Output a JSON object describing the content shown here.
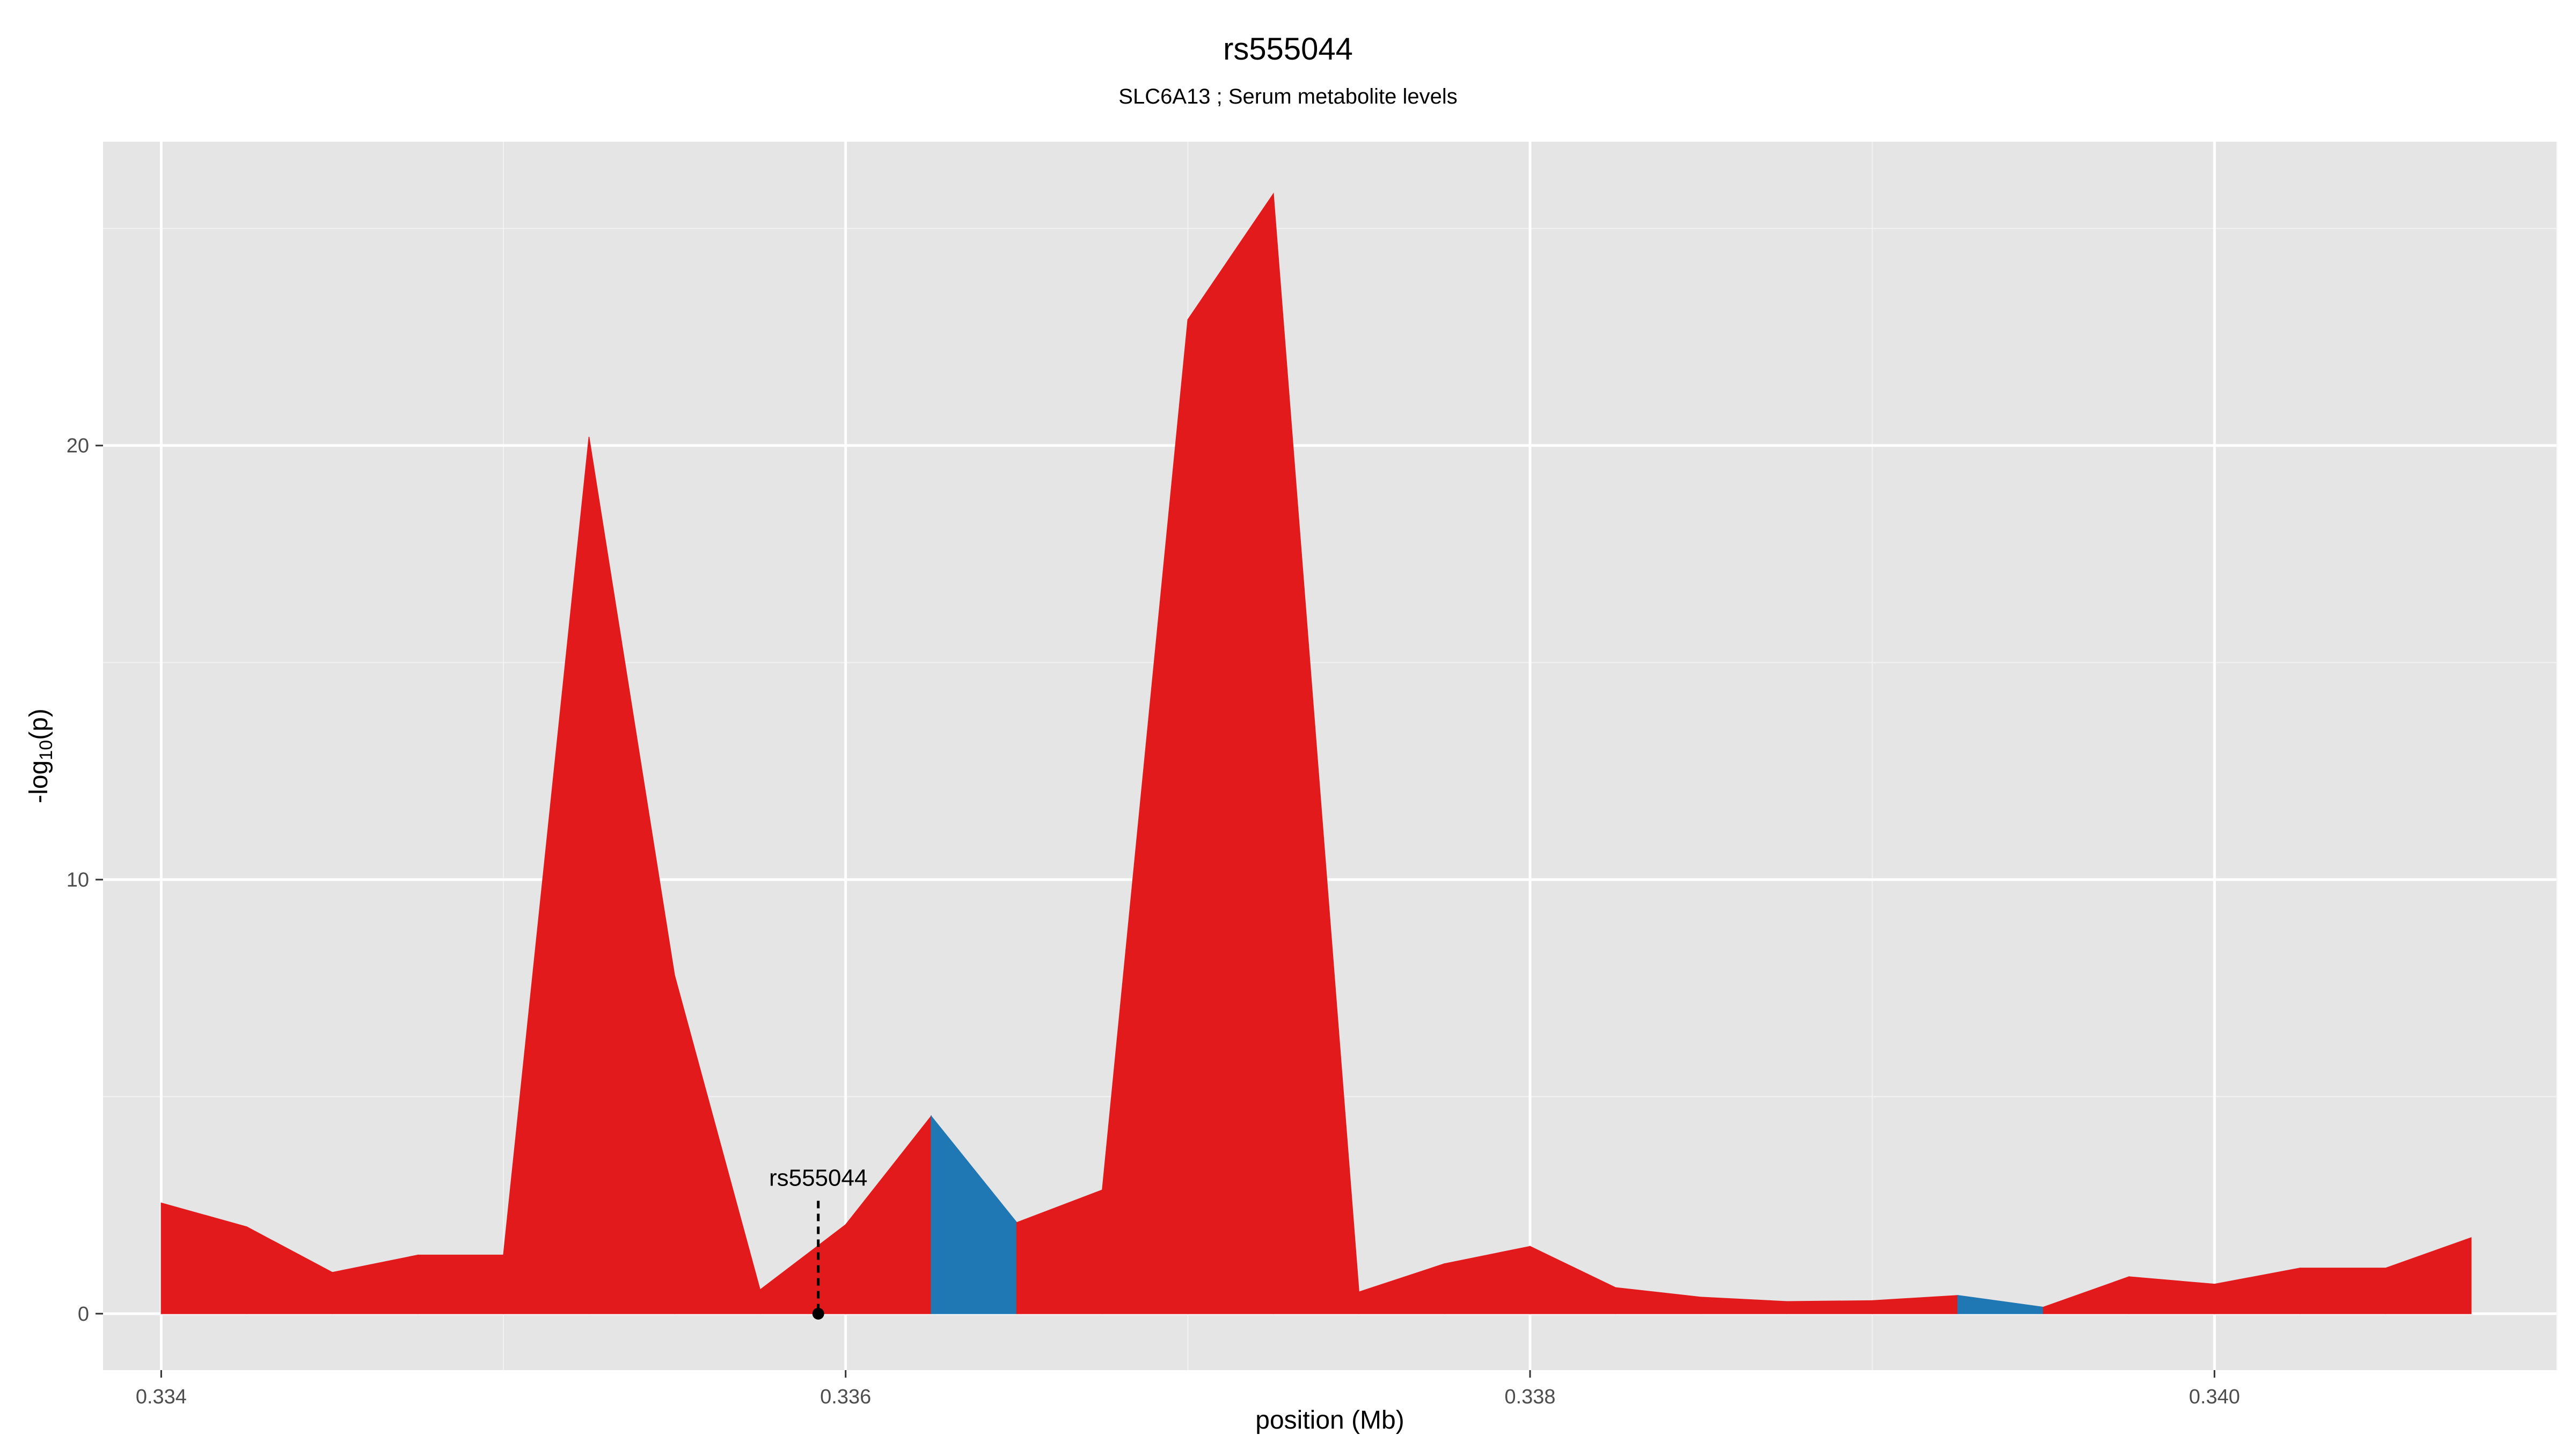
{
  "chart_data": {
    "type": "area",
    "title": "rs555044",
    "subtitle": "SLC6A13 ; Serum metabolite levels",
    "xlabel": "position (Mb)",
    "ylabel": "-log10(p)",
    "xlim": [
      0.33383,
      0.341
    ],
    "ylim": [
      -1.3,
      27.0
    ],
    "x_ticks": [
      0.334,
      0.336,
      0.338,
      0.34
    ],
    "x_tick_labels": [
      "0.334",
      "0.336",
      "0.338",
      "0.340"
    ],
    "y_ticks": [
      0,
      10,
      20
    ],
    "y_tick_labels": [
      "0",
      "10",
      "20"
    ],
    "grid": true,
    "colors": {
      "red": "#e31a1c",
      "blue": "#1f78b4",
      "panel": "#e5e5e5",
      "grid": "#ffffff"
    },
    "series": [
      {
        "x": [
          0.334,
          0.33425,
          0.3345,
          0.33475,
          0.335,
          0.33525,
          0.3355,
          0.33575,
          0.336,
          0.33625,
          0.3365,
          0.33675,
          0.337,
          0.33725,
          0.3375,
          0.33775,
          0.338,
          0.33825,
          0.3385,
          0.33875,
          0.339,
          0.33925,
          0.3395,
          0.33975,
          0.34,
          0.34025,
          0.3405,
          0.34075
        ],
        "y": [
          2.55,
          2.0,
          0.95,
          1.35,
          1.35,
          20.2,
          7.8,
          0.55,
          2.05,
          4.55,
          2.1,
          2.85,
          22.9,
          25.8,
          0.5,
          1.15,
          1.55,
          0.6,
          0.38,
          0.28,
          0.3,
          0.42,
          0.15,
          0.85,
          0.68,
          1.05,
          1.05,
          1.75
        ],
        "segment_colors": [
          "red",
          "red",
          "red",
          "red",
          "red",
          "red",
          "red",
          "red",
          "red",
          "blue",
          "red",
          "red",
          "red",
          "red",
          "red",
          "red",
          "red",
          "red",
          "red",
          "red",
          "red",
          "blue",
          "red",
          "red",
          "red",
          "red",
          "red"
        ]
      }
    ],
    "annotation": {
      "label": "rs555044",
      "x": 0.33592,
      "y_line_top": 2.6
    }
  }
}
